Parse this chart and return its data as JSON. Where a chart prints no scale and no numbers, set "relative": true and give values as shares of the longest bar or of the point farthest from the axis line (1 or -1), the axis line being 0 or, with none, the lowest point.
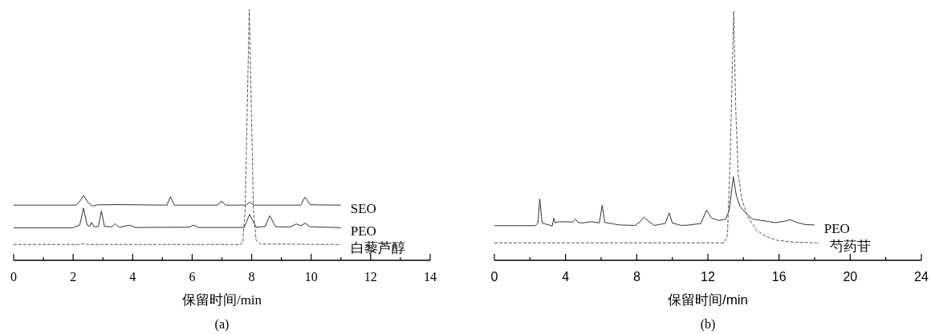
{
  "chart_data": [
    {
      "type": "line",
      "relative": true,
      "xlabel": "保留时间/min",
      "annotations": [
        "(a)"
      ],
      "xlim": [
        0,
        14
      ],
      "xticks": [
        0,
        {
          "value": 1,
          "label": null
        },
        2,
        {
          "value": 3,
          "label": null
        },
        4,
        {
          "value": 5,
          "label": null
        },
        6,
        {
          "value": 7,
          "label": null
        },
        8,
        {
          "value": 9,
          "label": null
        },
        10,
        {
          "value": 11,
          "label": null
        },
        12,
        {
          "value": 13,
          "label": null
        },
        14
      ],
      "series": [
        {
          "name": "SEO",
          "color": "#333333",
          "line_style": "solid",
          "x": [
            0,
            2.1,
            2.25,
            2.35,
            2.5,
            2.66,
            2.8,
            3.5,
            5.15,
            5.27,
            5.4,
            6.85,
            6.99,
            7.12,
            7.8,
            7.93,
            8.07,
            9.65,
            9.79,
            9.97,
            10.2,
            11
          ],
          "values": [
            0.22,
            0.22,
            0.24,
            0.259,
            0.23,
            0.216,
            0.221,
            0.222,
            0.22,
            0.254,
            0.22,
            0.22,
            0.237,
            0.22,
            0.22,
            0.232,
            0.22,
            0.22,
            0.252,
            0.222,
            0.221,
            0.22
          ]
        },
        {
          "name": "PEO",
          "color": "#333333",
          "line_style": "solid",
          "x": [
            0,
            2.0,
            2.1,
            2.22,
            2.35,
            2.47,
            2.56,
            2.62,
            2.7,
            2.85,
            2.95,
            3.05,
            3.3,
            3.41,
            3.55,
            3.9,
            4.1,
            5.9,
            6.05,
            6.2,
            7.75,
            7.93,
            8.15,
            8.45,
            8.61,
            8.8,
            9.3,
            9.5,
            9.65,
            9.8,
            9.95,
            11
          ],
          "values": [
            0.13,
            0.13,
            0.135,
            0.14,
            0.208,
            0.14,
            0.135,
            0.151,
            0.134,
            0.135,
            0.197,
            0.136,
            0.133,
            0.146,
            0.132,
            0.14,
            0.131,
            0.132,
            0.14,
            0.131,
            0.131,
            0.183,
            0.132,
            0.135,
            0.178,
            0.134,
            0.133,
            0.145,
            0.138,
            0.148,
            0.134,
            0.13
          ]
        },
        {
          "name": "白藜芦醇",
          "color": "#555555",
          "line_style": "dashed",
          "x": [
            0,
            2.2,
            2.35,
            2.5,
            7.6,
            7.7,
            7.78,
            7.85,
            7.92,
            7.99,
            8.06,
            8.15,
            8.3,
            11
          ],
          "values": [
            0.063,
            0.063,
            0.066,
            0.063,
            0.063,
            0.07,
            0.2,
            0.6,
            1,
            0.6,
            0.2,
            0.08,
            0.065,
            0.063
          ]
        }
      ]
    },
    {
      "type": "line",
      "relative": true,
      "xlabel": "保留时间/min",
      "annotations": [
        "(b)"
      ],
      "xlim": [
        0,
        24
      ],
      "xticks": [
        0,
        {
          "value": 2,
          "label": null
        },
        4,
        {
          "value": 6,
          "label": null
        },
        8,
        {
          "value": 10,
          "label": null
        },
        12,
        {
          "value": 14,
          "label": null
        },
        16,
        {
          "value": 18,
          "label": null
        },
        20,
        {
          "value": 22,
          "label": null
        },
        24
      ],
      "series": [
        {
          "name": "PEO",
          "color": "#333333",
          "line_style": "solid",
          "x": [
            0,
            2.3,
            2.45,
            2.55,
            2.68,
            2.9,
            3.25,
            3.34,
            3.42,
            3.6,
            4.4,
            4.56,
            4.7,
            5.0,
            5.2,
            5.5,
            5.9,
            6.06,
            6.2,
            6.7,
            7.0,
            7.9,
            8.2,
            8.41,
            8.7,
            9.0,
            9.6,
            9.83,
            10.0,
            10.5,
            11.0,
            11.6,
            11.93,
            12.2,
            12.6,
            13.0,
            13.2,
            13.43,
            13.6,
            13.82,
            14.2,
            14.49,
            15.0,
            15.82,
            16.3,
            16.65,
            17.0,
            17.5,
            17.99
          ],
          "values": [
            0.139,
            0.139,
            0.15,
            0.247,
            0.15,
            0.145,
            0.138,
            0.169,
            0.15,
            0.155,
            0.154,
            0.166,
            0.152,
            0.15,
            0.153,
            0.155,
            0.15,
            0.222,
            0.152,
            0.146,
            0.142,
            0.14,
            0.155,
            0.174,
            0.155,
            0.14,
            0.148,
            0.19,
            0.15,
            0.14,
            0.142,
            0.148,
            0.202,
            0.17,
            0.16,
            0.165,
            0.2,
            0.336,
            0.26,
            0.214,
            0.185,
            0.166,
            0.16,
            0.151,
            0.157,
            0.163,
            0.152,
            0.143,
            0.142
          ]
        },
        {
          "name": "芍药苷",
          "color": "#555555",
          "line_style": "dashed",
          "x": [
            0,
            12.9,
            13.1,
            13.25,
            13.45,
            13.57,
            13.7,
            13.9,
            14.2,
            14.74,
            15.3,
            15.9,
            17,
            18.3
          ],
          "values": [
            0.07,
            0.07,
            0.1,
            0.4,
            1,
            0.6,
            0.35,
            0.25,
            0.18,
            0.12,
            0.095,
            0.08,
            0.072,
            0.07
          ]
        }
      ]
    }
  ]
}
